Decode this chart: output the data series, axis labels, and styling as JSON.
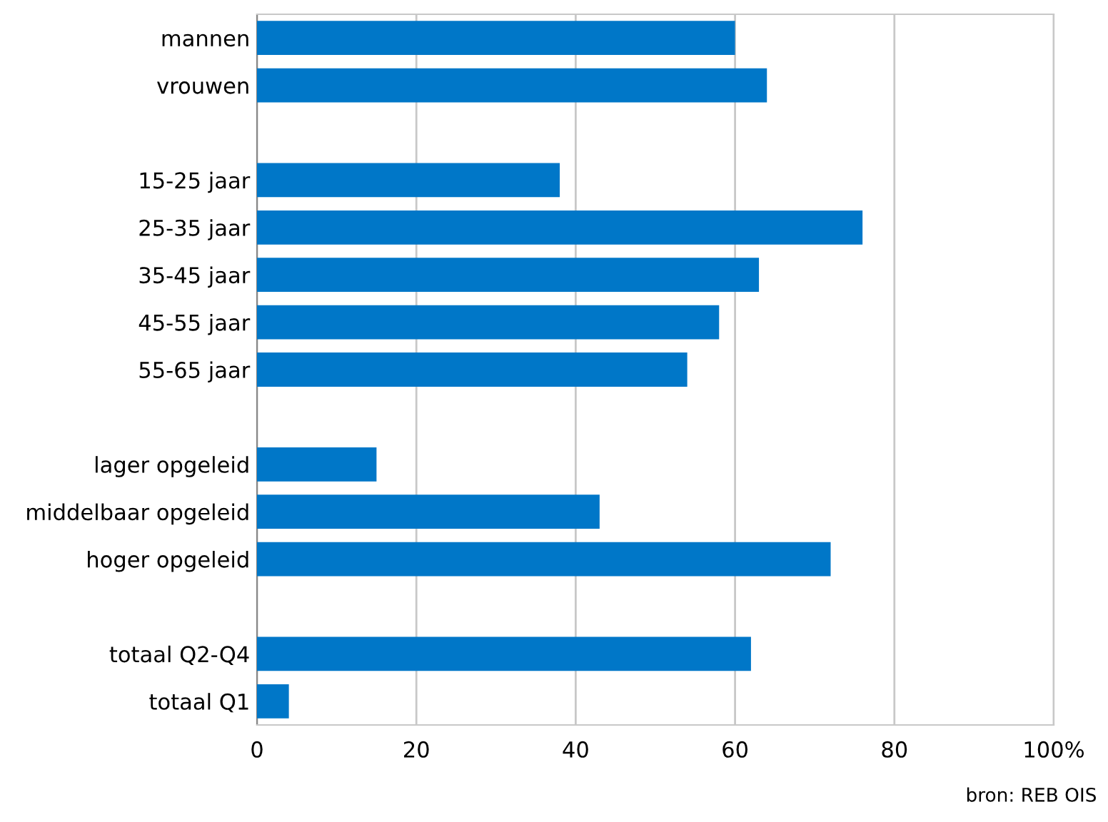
{
  "chart_data": {
    "type": "bar",
    "orientation": "horizontal",
    "categories": [
      "mannen",
      "vrouwen",
      null,
      "15-25 jaar",
      "25-35 jaar",
      "35-45 jaar",
      "45-55 jaar",
      "55-65 jaar",
      null,
      "lager opgeleid",
      "middelbaar opgeleid",
      "hoger opgeleid",
      null,
      "totaal Q2-Q4",
      "totaal Q1"
    ],
    "values": [
      60,
      64,
      null,
      38,
      76,
      63,
      58,
      54,
      null,
      15,
      43,
      72,
      null,
      62,
      4
    ],
    "color": "#0077c8",
    "xlim": [
      0,
      100
    ],
    "xticks": [
      0,
      20,
      40,
      60,
      80,
      {
        "value": 100,
        "label": "100%"
      }
    ],
    "grid": "x",
    "annotations": [
      "bron: REB OIS"
    ]
  }
}
